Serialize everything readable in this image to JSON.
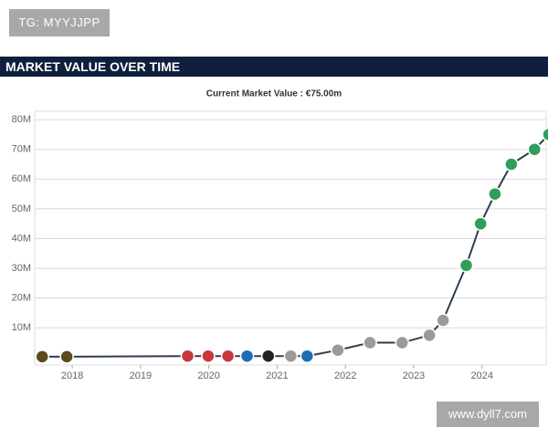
{
  "header": {
    "tag": "TG: MYYJJPP",
    "section_title": "MARKET VALUE OVER TIME"
  },
  "footer": {
    "watermark": "www.dyll7.com"
  },
  "chart_data": {
    "type": "line",
    "title": "Current Market Value : €75.00m",
    "x": [
      2017.56,
      2017.92,
      2019.69,
      2019.99,
      2020.28,
      2020.56,
      2020.87,
      2021.2,
      2021.44,
      2021.89,
      2022.36,
      2022.83,
      2023.23,
      2023.43,
      2023.77,
      2023.98,
      2024.19,
      2024.43,
      2024.77,
      2024.98
    ],
    "series": [
      {
        "name": "Market value",
        "color": "#2d3e50",
        "values": [
          0.3,
          0.3,
          0.5,
          0.5,
          0.5,
          0.5,
          0.5,
          0.5,
          0.5,
          2.5,
          5,
          5,
          7.5,
          12.5,
          31,
          45,
          55,
          65,
          70,
          75
        ]
      }
    ],
    "marker_colors": [
      "#5a4a1e",
      "#5a4a1e",
      "#c8383c",
      "#c8383c",
      "#c8383c",
      "#1c6fb5",
      "#222222",
      "#9a9a9a",
      "#1c6fb5",
      "#9a9a9a",
      "#9a9a9a",
      "#9a9a9a",
      "#9a9a9a",
      "#9a9a9a",
      "#2f9e5a",
      "#2f9e5a",
      "#2f9e5a",
      "#2f9e5a",
      "#2f9e5a",
      "#2f9e5a"
    ],
    "xlim": [
      2017.45,
      2024.94
    ],
    "xticks": [
      2018,
      2019,
      2020,
      2021,
      2022,
      2023,
      2024
    ],
    "ylim": [
      -2.5,
      82.8
    ],
    "yticks": [
      {
        "value": 10,
        "label": "10M"
      },
      {
        "value": 20,
        "label": "20M"
      },
      {
        "value": 30,
        "label": "30M"
      },
      {
        "value": 40,
        "label": "40M"
      },
      {
        "value": 50,
        "label": "50M"
      },
      {
        "value": 60,
        "label": "60M"
      },
      {
        "value": 70,
        "label": "70M"
      },
      {
        "value": 80,
        "label": "80M"
      }
    ],
    "grid": true
  }
}
